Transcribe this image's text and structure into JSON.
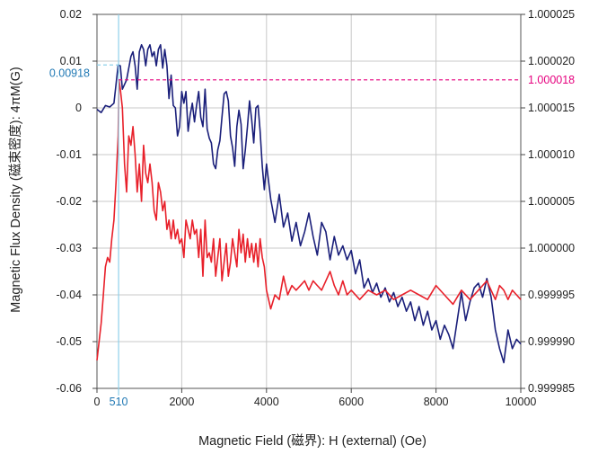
{
  "chart_data": {
    "type": "line",
    "title": "",
    "xlabel": "Magnetic Field (磁界): H (external) (Oe)",
    "ylabel": "Magnetic Flux Density (磁束密度): 4πM(G)",
    "xlim": [
      0,
      10000
    ],
    "ylim": [
      -0.06,
      0.02
    ],
    "y2lim": [
      0.999985,
      1.000025
    ],
    "grid": true,
    "x_ticks": [
      "0",
      "2000",
      "4000",
      "6000",
      "8000",
      "10000"
    ],
    "y_ticks": [
      "0.02",
      "0.01",
      "0",
      "-0.01",
      "-0.02",
      "-0.03",
      "-0.04",
      "-0.05",
      "-0.06"
    ],
    "y2_ticks": [
      "1.000025",
      "1.000020",
      "1.000015",
      "1.000010",
      "1.000005",
      "1.000000",
      "0.999995",
      "0.999990",
      "0.999985"
    ],
    "annotations": {
      "vline_x": 510,
      "vline_label": "510",
      "hline_left_y": 0.00918,
      "hline_left_label": "0.00918",
      "hline_right_y": 1.000018,
      "hline_right_label": "1.000018"
    },
    "series": [
      {
        "axis": "left",
        "color": "#1a1f7a",
        "x": [
          0,
          100,
          200,
          300,
          400,
          500,
          550,
          600,
          700,
          750,
          800,
          850,
          900,
          950,
          1000,
          1050,
          1100,
          1150,
          1200,
          1250,
          1300,
          1350,
          1400,
          1450,
          1500,
          1550,
          1600,
          1650,
          1700,
          1750,
          1800,
          1850,
          1900,
          1950,
          2000,
          2050,
          2100,
          2150,
          2200,
          2250,
          2300,
          2350,
          2400,
          2450,
          2500,
          2550,
          2600,
          2650,
          2700,
          2750,
          2800,
          2850,
          2900,
          2950,
          3000,
          3050,
          3100,
          3150,
          3200,
          3250,
          3300,
          3350,
          3400,
          3450,
          3500,
          3550,
          3600,
          3650,
          3700,
          3750,
          3800,
          3850,
          3900,
          3950,
          4000,
          4100,
          4200,
          4300,
          4400,
          4500,
          4600,
          4700,
          4800,
          4900,
          5000,
          5100,
          5200,
          5300,
          5400,
          5500,
          5600,
          5700,
          5800,
          5900,
          6000,
          6100,
          6200,
          6300,
          6400,
          6500,
          6600,
          6700,
          6800,
          6900,
          7000,
          7100,
          7200,
          7300,
          7400,
          7500,
          7600,
          7700,
          7800,
          7900,
          8000,
          8100,
          8200,
          8300,
          8400,
          8500,
          8600,
          8700,
          8800,
          8900,
          9000,
          9100,
          9200,
          9300,
          9400,
          9500,
          9600,
          9700,
          9800,
          9900,
          10000
        ],
        "y": [
          -0.0003,
          -0.001,
          0.0005,
          0.0002,
          0.001,
          0.0092,
          0.009,
          0.004,
          0.006,
          0.0085,
          0.011,
          0.012,
          0.009,
          0.004,
          0.012,
          0.0135,
          0.0125,
          0.009,
          0.0125,
          0.0135,
          0.011,
          0.012,
          0.009,
          0.0125,
          0.0135,
          0.0085,
          0.0125,
          0.009,
          0.002,
          0.007,
          0.0005,
          0.0,
          -0.006,
          -0.004,
          0.0035,
          0.001,
          0.0035,
          -0.005,
          -0.0015,
          0.001,
          -0.003,
          0.0005,
          0.0035,
          -0.002,
          -0.004,
          0.004,
          -0.0045,
          -0.0065,
          -0.0075,
          -0.012,
          -0.013,
          -0.009,
          -0.007,
          -0.002,
          0.003,
          0.0035,
          0.0015,
          -0.006,
          -0.0085,
          -0.0125,
          -0.004,
          -0.0005,
          -0.0035,
          -0.013,
          -0.009,
          -0.004,
          0.0015,
          -0.0025,
          -0.0075,
          0.0,
          0.0005,
          -0.005,
          -0.0125,
          -0.0175,
          -0.012,
          -0.0195,
          -0.0245,
          -0.0185,
          -0.0255,
          -0.0225,
          -0.0285,
          -0.0245,
          -0.0295,
          -0.0265,
          -0.0225,
          -0.0275,
          -0.0315,
          -0.0245,
          -0.0265,
          -0.0325,
          -0.0275,
          -0.0315,
          -0.0295,
          -0.0325,
          -0.0305,
          -0.0355,
          -0.0325,
          -0.0385,
          -0.0365,
          -0.0395,
          -0.0375,
          -0.0405,
          -0.0385,
          -0.0415,
          -0.0395,
          -0.0425,
          -0.0405,
          -0.0435,
          -0.0415,
          -0.0455,
          -0.0425,
          -0.0465,
          -0.0435,
          -0.0475,
          -0.0455,
          -0.0495,
          -0.0465,
          -0.0485,
          -0.0515,
          -0.0455,
          -0.0395,
          -0.0455,
          -0.0415,
          -0.0385,
          -0.0375,
          -0.0405,
          -0.0365,
          -0.0405,
          -0.0475,
          -0.0515,
          -0.0545,
          -0.0475,
          -0.0515,
          -0.0495,
          -0.0505
        ]
      },
      {
        "axis": "right",
        "color": "#e8202a",
        "x": [
          0,
          100,
          150,
          200,
          250,
          300,
          350,
          400,
          450,
          500,
          520,
          550,
          600,
          650,
          700,
          750,
          800,
          850,
          900,
          950,
          1000,
          1050,
          1100,
          1150,
          1200,
          1250,
          1300,
          1350,
          1400,
          1450,
          1500,
          1550,
          1600,
          1650,
          1700,
          1750,
          1800,
          1850,
          1900,
          1950,
          2000,
          2050,
          2100,
          2150,
          2200,
          2250,
          2300,
          2350,
          2400,
          2450,
          2500,
          2550,
          2600,
          2650,
          2700,
          2750,
          2800,
          2850,
          2900,
          2950,
          3000,
          3050,
          3100,
          3150,
          3200,
          3250,
          3300,
          3350,
          3400,
          3450,
          3500,
          3550,
          3600,
          3650,
          3700,
          3750,
          3800,
          3850,
          3900,
          3950,
          4000,
          4100,
          4200,
          4300,
          4400,
          4500,
          4600,
          4700,
          4800,
          4900,
          5000,
          5100,
          5200,
          5300,
          5400,
          5500,
          5600,
          5700,
          5800,
          5900,
          6000,
          6200,
          6400,
          6600,
          6800,
          7000,
          7200,
          7400,
          7600,
          7800,
          8000,
          8200,
          8400,
          8600,
          8800,
          9000,
          9200,
          9400,
          9500,
          9600,
          9700,
          9800,
          9900,
          10000
        ],
        "y": [
          0.999988,
          0.999992,
          0.999995,
          0.999998,
          0.999999,
          0.9999985,
          1.000001,
          1.000003,
          1.000007,
          1.000012,
          1.000018,
          1.000017,
          1.000015,
          1.000009,
          1.000006,
          1.000012,
          1.000011,
          1.000013,
          1.00001,
          1.000006,
          1.000009,
          1.000005,
          1.000011,
          1.000008,
          1.000007,
          1.000009,
          1.000007,
          1.000004,
          1.000003,
          1.000007,
          1.000006,
          1.000004,
          1.000005,
          1.000002,
          1.000003,
          1.000001,
          1.000003,
          1.000001,
          1.000002,
          1.0000005,
          1.000001,
          0.999999,
          1.000003,
          1.000002,
          1.000001,
          1.000003,
          1.0000015,
          1.000002,
          0.999999,
          1.000002,
          0.999997,
          1.000003,
          0.999999,
          0.9999995,
          0.9999985,
          1.000001,
          0.999997,
          0.999999,
          1.000001,
          0.9999965,
          0.9999985,
          1.0000005,
          0.999997,
          0.9999985,
          1.000001,
          0.9999995,
          0.999998,
          1.000002,
          0.9999995,
          1.0000015,
          0.9999985,
          1.000001,
          0.999999,
          1.0000005,
          0.9999985,
          1.0000005,
          0.999998,
          1.000001,
          0.999999,
          0.999998,
          0.9999955,
          0.9999935,
          0.999995,
          0.9999945,
          0.999997,
          0.999995,
          0.999996,
          0.9999955,
          0.999996,
          0.9999965,
          0.9999955,
          0.9999965,
          0.999996,
          0.9999955,
          0.9999965,
          0.9999975,
          0.999996,
          0.999995,
          0.9999965,
          0.999995,
          0.9999955,
          0.9999945,
          0.9999955,
          0.999995,
          0.9999955,
          0.9999945,
          0.999995,
          0.9999955,
          0.999995,
          0.9999945,
          0.999996,
          0.999995,
          0.999994,
          0.9999955,
          0.9999945,
          0.9999955,
          0.9999965,
          0.9999945,
          0.999996,
          0.9999955,
          0.9999945,
          0.9999955,
          0.999995,
          0.9999945
        ]
      }
    ]
  }
}
